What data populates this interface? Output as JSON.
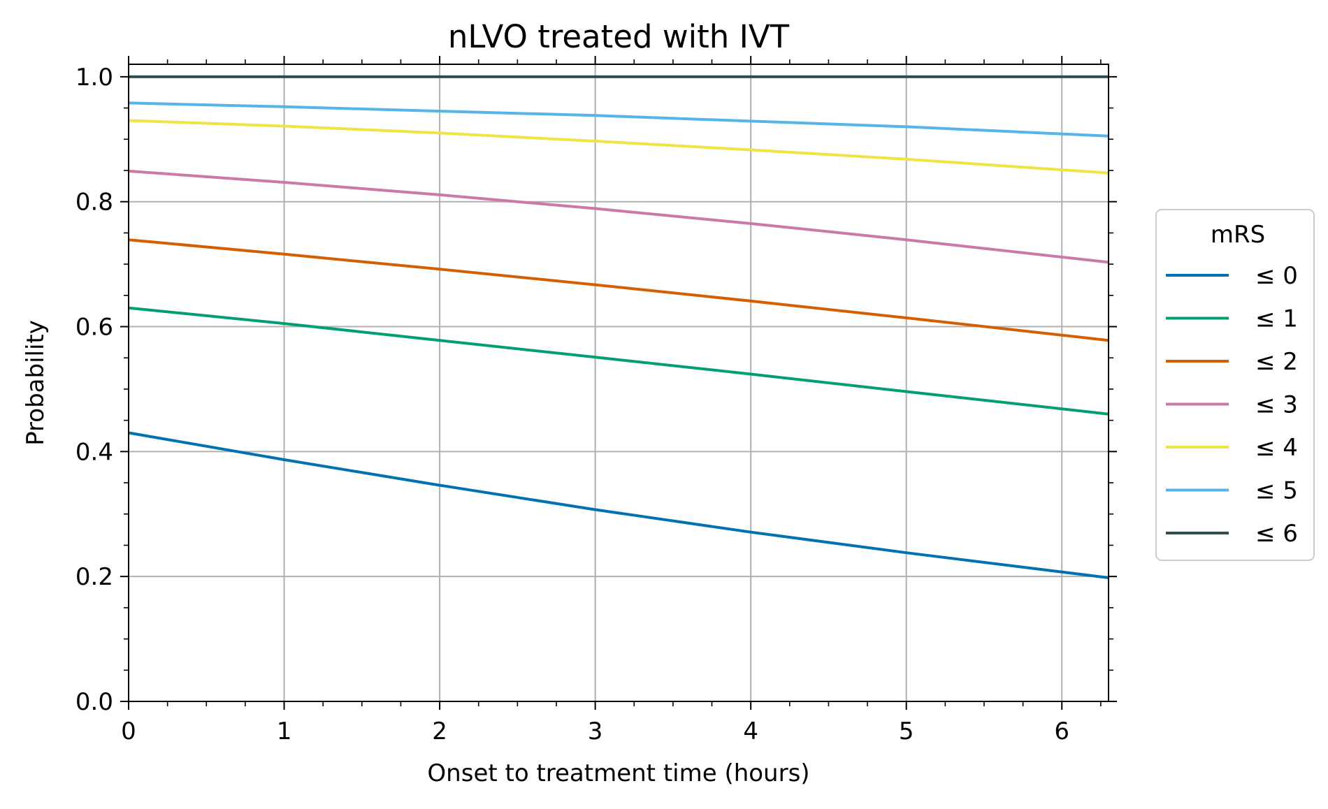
{
  "chart_data": {
    "type": "line",
    "title": "nLVO treated with IVT",
    "xlabel": "Onset to treatment time (hours)",
    "ylabel": "Probability",
    "xlim": [
      0,
      6.3
    ],
    "ylim": [
      0,
      1.02
    ],
    "xticks": [
      0,
      1,
      2,
      3,
      4,
      5,
      6
    ],
    "xtick_labels": [
      "0",
      "1",
      "2",
      "3",
      "4",
      "5",
      "6"
    ],
    "yticks": [
      0.0,
      0.2,
      0.4,
      0.6,
      0.8,
      1.0
    ],
    "ytick_labels": [
      "0.0",
      "0.2",
      "0.4",
      "0.6",
      "0.8",
      "1.0"
    ],
    "grid": true,
    "legend": {
      "title": "mRS",
      "placement": "outside-right"
    },
    "x": [
      0,
      1,
      2,
      3,
      4,
      5,
      6.3
    ],
    "series": [
      {
        "name": "≤ 0",
        "color": "#0072b2",
        "values": [
          0.43,
          0.387,
          0.346,
          0.307,
          0.271,
          0.238,
          0.198
        ]
      },
      {
        "name": "≤ 1",
        "color": "#009e73",
        "values": [
          0.63,
          0.605,
          0.578,
          0.551,
          0.524,
          0.496,
          0.46
        ]
      },
      {
        "name": "≤ 2",
        "color": "#d55e00",
        "values": [
          0.739,
          0.716,
          0.692,
          0.667,
          0.641,
          0.614,
          0.578
        ]
      },
      {
        "name": "≤ 3",
        "color": "#cc79a7",
        "values": [
          0.849,
          0.831,
          0.811,
          0.789,
          0.765,
          0.739,
          0.703
        ]
      },
      {
        "name": "≤ 4",
        "color": "#f0e442",
        "values": [
          0.93,
          0.921,
          0.91,
          0.897,
          0.883,
          0.868,
          0.846
        ]
      },
      {
        "name": "≤ 5",
        "color": "#56b4e9",
        "values": [
          0.958,
          0.952,
          0.945,
          0.938,
          0.929,
          0.92,
          0.905
        ]
      },
      {
        "name": "≤ 6",
        "color": "#2f4f4f",
        "values": [
          1.0,
          1.0,
          1.0,
          1.0,
          1.0,
          1.0,
          1.0
        ]
      }
    ]
  }
}
